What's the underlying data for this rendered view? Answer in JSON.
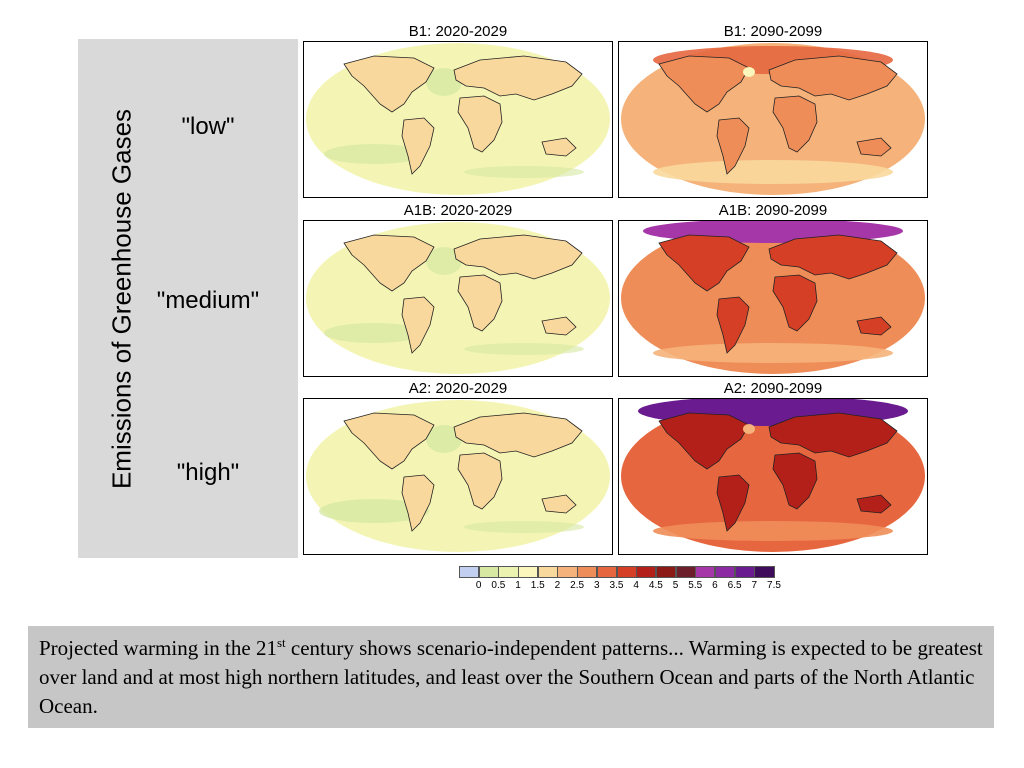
{
  "side_label": "Emissions of Greenhouse Gases",
  "scenarios": [
    {
      "label": "\"low\"",
      "left_title": "B1: 2020-2029",
      "right_title": "B1: 2090-2099"
    },
    {
      "label": "\"medium\"",
      "left_title": "A1B: 2020-2029",
      "right_title": "A1B: 2090-2099"
    },
    {
      "label": "\"high\"",
      "left_title": "A2: 2020-2029",
      "right_title": "A2: 2090-2099"
    }
  ],
  "legend": {
    "ticks": [
      "0",
      "0.5",
      "1",
      "1.5",
      "2",
      "2.5",
      "3",
      "3.5",
      "4",
      "4.5",
      "5",
      "5.5",
      "6",
      "6.5",
      "7",
      "7.5"
    ],
    "colors": [
      "#c3cff0",
      "#d6e8a2",
      "#ecf2b0",
      "#fbf7bc",
      "#f9d89d",
      "#f5b27a",
      "#ef8d59",
      "#e6673f",
      "#d43f26",
      "#b3201a",
      "#8b1a16",
      "#6c1f2a",
      "#a637a8",
      "#8b2aa3",
      "#6a1b8f",
      "#3f0c5b"
    ]
  },
  "caption": {
    "part1": "Projected warming in the 21",
    "sup": "st",
    "part2": " century shows scenario-independent patterns... Warming is expected to be greatest over land and at most high northern latitudes, and least over the Southern Ocean and parts of the North Atlantic Ocean."
  }
}
